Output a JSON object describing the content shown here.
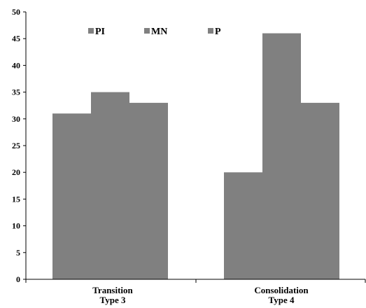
{
  "chart_data": {
    "type": "bar",
    "categories": [
      [
        "Transition",
        "Type 3"
      ],
      [
        "Consolidation",
        "Type 4"
      ]
    ],
    "series": [
      {
        "name": "PI",
        "values": [
          31,
          20
        ]
      },
      {
        "name": "MN",
        "values": [
          35,
          46
        ]
      },
      {
        "name": "P",
        "values": [
          33,
          33
        ]
      }
    ],
    "ylim": [
      0,
      50
    ],
    "yticks": [
      0,
      5,
      10,
      15,
      20,
      25,
      30,
      35,
      40,
      45,
      50
    ],
    "grid": false,
    "legend_position": "top-left",
    "colors": {
      "bar": "#808080",
      "axis": "#000000"
    }
  }
}
